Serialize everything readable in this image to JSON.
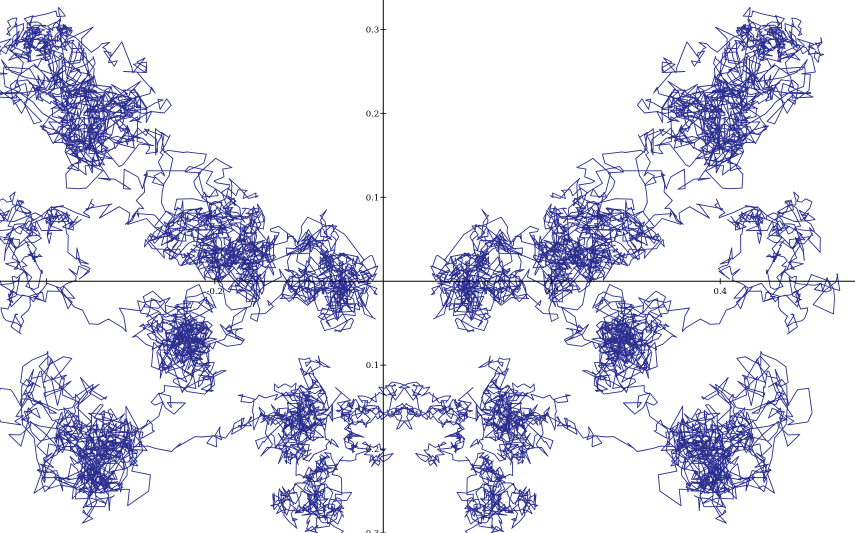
{
  "chart_data": {
    "type": "line",
    "title": "",
    "xlabel": "",
    "ylabel": "",
    "xlim": [
      -0.455,
      0.56
    ],
    "ylim": [
      -0.3,
      0.335
    ],
    "x_ticks": [
      {
        "value": -0.4,
        "label": ""
      },
      {
        "value": -0.2,
        "label": "-0.2"
      },
      {
        "value": 0.2,
        "label": "0.2"
      },
      {
        "value": 0.4,
        "label": "0.4"
      }
    ],
    "y_ticks": [
      {
        "value": -0.3,
        "label": "0.3"
      },
      {
        "value": -0.2,
        "label": "0.2"
      },
      {
        "value": -0.1,
        "label": "0.1"
      },
      {
        "value": 0.1,
        "label": "0.1"
      },
      {
        "value": 0.2,
        "label": "0.2"
      },
      {
        "value": 0.3,
        "label": "0.3"
      }
    ],
    "grid": false,
    "line_color": "#2b2f8f",
    "series": [
      {
        "clusters": [
          {
            "x": 0.115,
            "y": 0.0,
            "spread": 0.05,
            "points": 600
          },
          {
            "x": 0.225,
            "y": 0.025,
            "spread": 0.05,
            "points": 550
          },
          {
            "x": 0.4,
            "y": 0.21,
            "spread": 0.07,
            "points": 800
          },
          {
            "x": 0.45,
            "y": 0.29,
            "spread": 0.04,
            "points": 300
          },
          {
            "x": 0.25,
            "y": 0.08,
            "spread": 0.06,
            "points": 450
          },
          {
            "x": 0.48,
            "y": 0.03,
            "spread": 0.05,
            "points": 350
          },
          {
            "x": 0.28,
            "y": -0.08,
            "spread": 0.05,
            "points": 650
          },
          {
            "x": 0.4,
            "y": -0.19,
            "spread": 0.07,
            "points": 800
          },
          {
            "x": 0.15,
            "y": -0.18,
            "spread": 0.05,
            "points": 500
          },
          {
            "x": 0.14,
            "y": -0.26,
            "spread": 0.04,
            "points": 380
          },
          {
            "x": 0.06,
            "y": -0.16,
            "spread": 0.03,
            "points": 300
          }
        ],
        "mirror_about_x0": true,
        "x_offset_of_mirror": 0.05
      }
    ]
  }
}
